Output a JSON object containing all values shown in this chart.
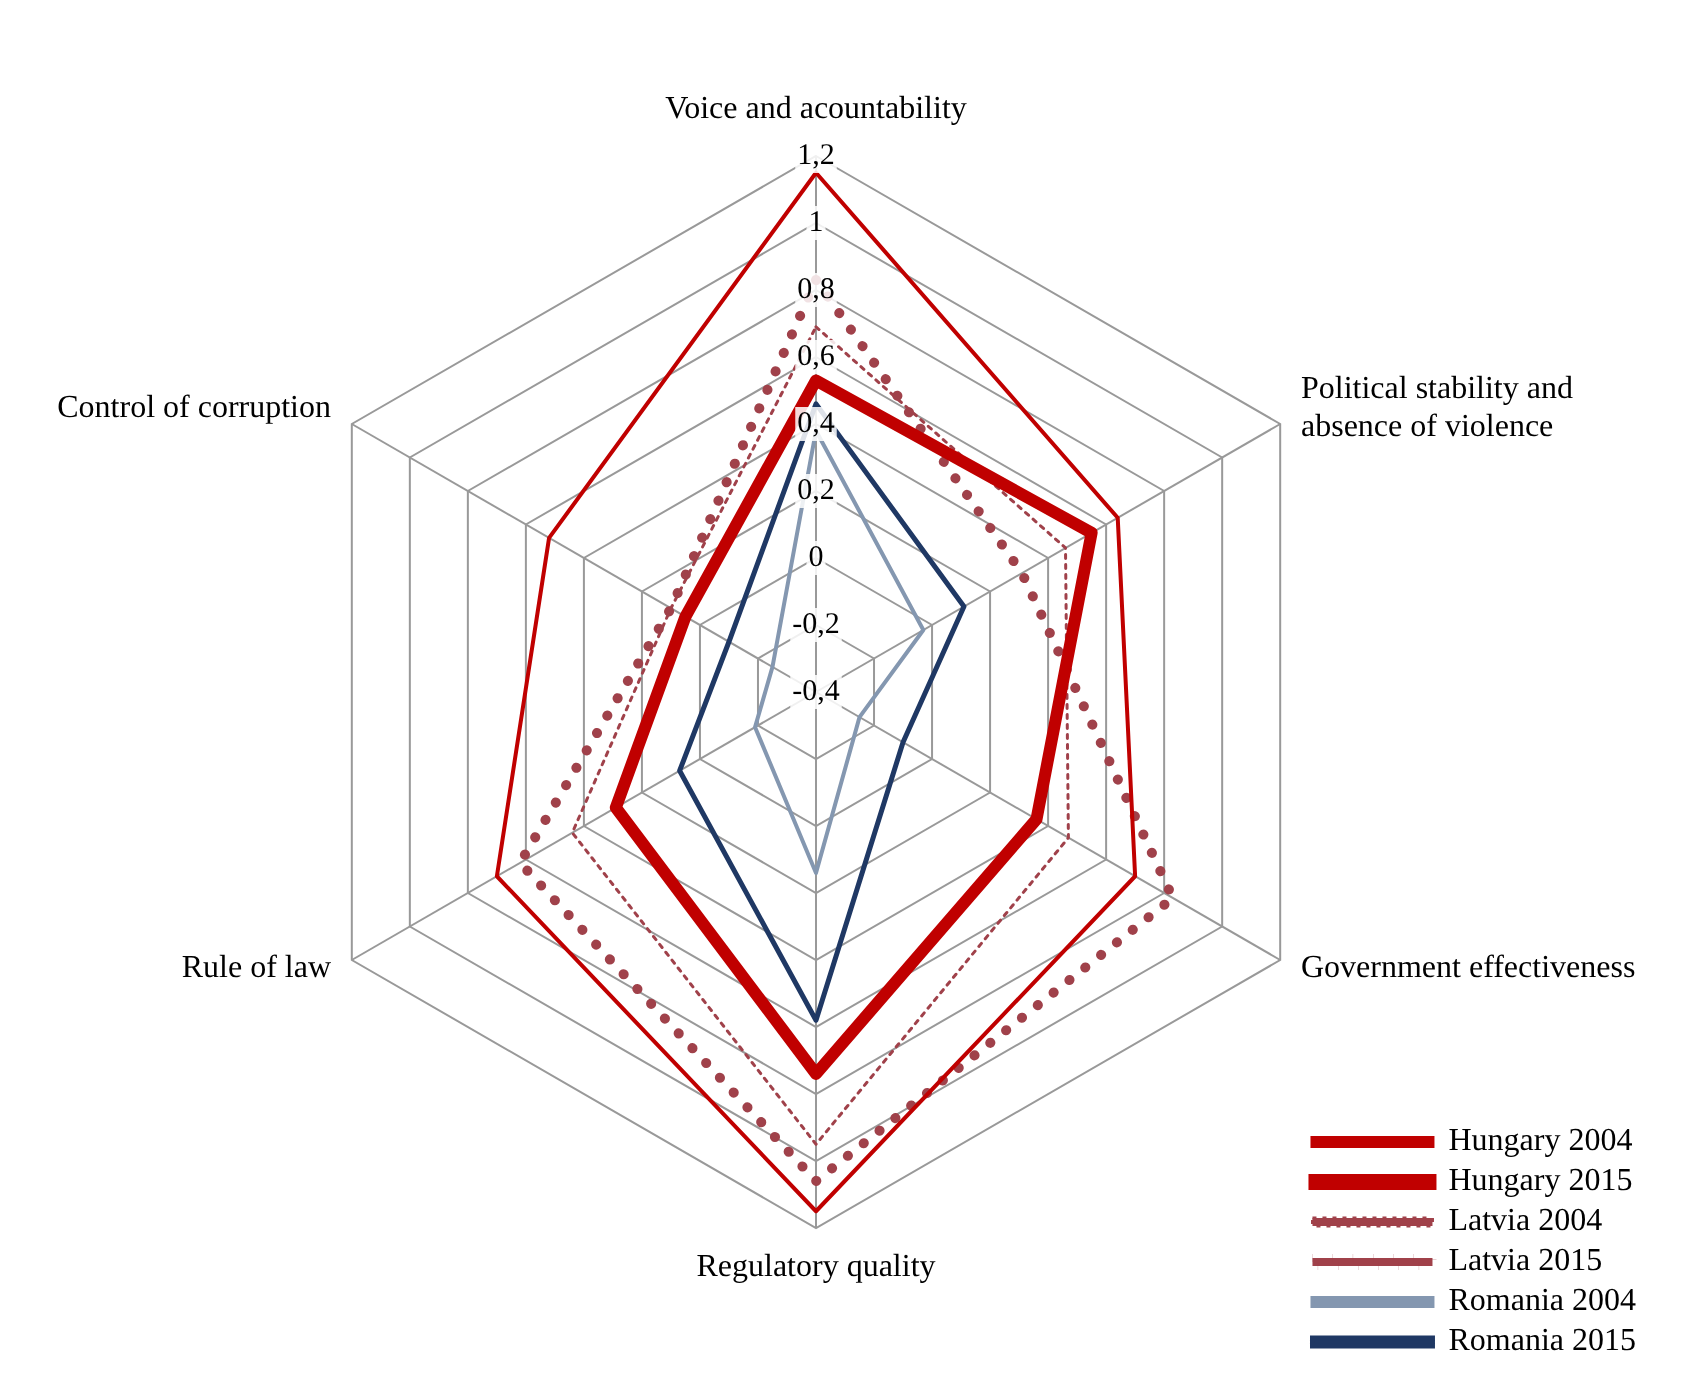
{
  "chart_data": {
    "type": "radar",
    "categories": [
      "Voice and acountability",
      "Political stability and absence of violence",
      "Government effectiveness",
      "Regulatory quality",
      "Rule of law",
      "Control of corruption"
    ],
    "series": [
      {
        "name": "Hungary 2004",
        "color": "#c00000",
        "line_style": "solid",
        "values": [
          1.15,
          0.64,
          0.7,
          1.15,
          0.7,
          0.52
        ]
      },
      {
        "name": "Hungary 2015",
        "color": "#c00000",
        "line_style": "solid",
        "values": [
          0.53,
          0.55,
          0.36,
          0.74,
          0.29,
          0.05
        ]
      },
      {
        "name": "Latvia 2004",
        "color": "#a0414a",
        "line_style": "dotted",
        "values": [
          0.69,
          0.46,
          0.47,
          0.95,
          0.44,
          0.1
        ]
      },
      {
        "name": "Latvia 2015",
        "color": "#a0414a",
        "line_style": "dotted",
        "values": [
          0.83,
          0.31,
          0.83,
          1.06,
          0.62,
          0.1
        ]
      },
      {
        "name": "Romania 2004",
        "color": "#8497b0",
        "line_style": "solid",
        "values": [
          0.38,
          -0.03,
          -0.25,
          0.14,
          -0.19,
          -0.25
        ]
      },
      {
        "name": "Romania 2015",
        "color": "#1f3864",
        "line_style": "solid",
        "values": [
          0.46,
          0.11,
          -0.1,
          0.58,
          0.07,
          -0.1
        ]
      }
    ],
    "ylim": [
      -0.4,
      1.2
    ],
    "yticks": [
      {
        "value": -0.4,
        "label": "-0,4"
      },
      {
        "value": -0.2,
        "label": "-0,2"
      },
      {
        "value": 0,
        "label": "0"
      },
      {
        "value": 0.2,
        "label": "0,2"
      },
      {
        "value": 0.4,
        "label": "0,4"
      },
      {
        "value": 0.6,
        "label": "0,6"
      },
      {
        "value": 0.8,
        "label": "0,8"
      },
      {
        "value": 1,
        "label": "1"
      },
      {
        "value": 1.2,
        "label": "1,2"
      }
    ],
    "grid": true,
    "legend": "bottom right",
    "marker": "none"
  }
}
